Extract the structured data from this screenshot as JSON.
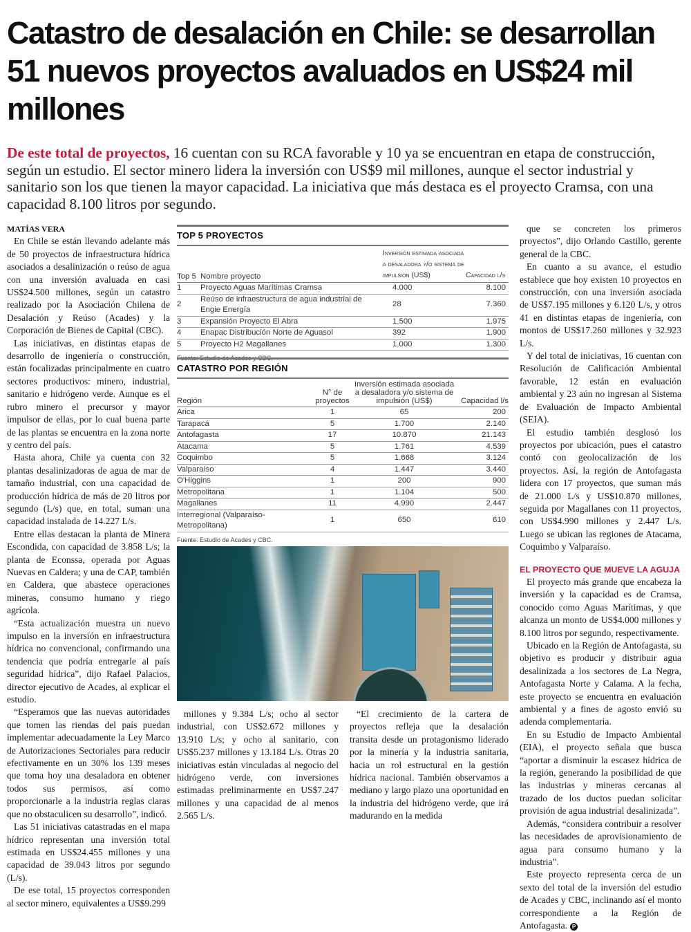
{
  "headline": "Catastro de desalación en Chile: se desarrollan 51 nuevos proyectos avaluados en US$24 mil millones",
  "lede": {
    "highlight": "De este total de proyectos,",
    "text": " 16 cuentan con su RCA favorable y 10 ya se encuentran en etapa de construcción, según un estudio. El sector minero lidera la inversión con US$9 mil millones, aunque el sector industrial y sanitario son los que tienen la mayor capacidad. La iniciativa que más destaca es el proyecto Cramsa, con una capacidad 8.100 litros por segundo."
  },
  "byline": "MATÍAS VERA",
  "col1": [
    "En Chile se están llevando adelante más de 50 proyectos de infraestructura hídrica asociados a desalinización o reúso de agua con una inversión avaluada en casi US$24.500 millones, según un catastro realizado por la Asociación Chilena de Desalación y Reúso (Acades) y la Corporación de Bienes de Capital (CBC).",
    "Las iniciativas, en distintas etapas de desarrollo de ingeniería o construcción, están focalizadas principalmente en cuatro sectores productivos: minero, industrial, sanitario e hidrógeno verde. Aunque es el rubro minero el precursor y mayor impulsor de ellas, por lo cual buena parte de las plantas se encuentra en la zona norte y centro del país.",
    "Hasta ahora, Chile ya cuenta con 32 plantas desalinizadoras de agua de mar de tamaño industrial, con una capacidad de producción hídrica de más de 20 litros por segundo (L/s) que, en total, suman una capacidad instalada de 14.227 L/s.",
    "Entre ellas destacan la planta de Minera Escondida, con capacidad de 3.858 L/s; la planta de Econssa, operada por Aguas Nuevas en Caldera; y una de CAP, también en Caldera, que abastece operaciones mineras, consumo humano y riego agrícola.",
    "“Esta actualización muestra un nuevo impulso en la inversión en infraestructura hídrica no convencional, confirmando una tendencia que podría entregarle al país seguridad hídrica”, dijo Rafael Palacios, director ejecutivo de Acades, al explicar el estudio.",
    "“Esperamos que las nuevas autoridades que tomen las riendas del país puedan implementar adecuadamente la Ley Marco de Autorizaciones Sectoriales para reducir efectivamente en un 30% los 139 meses que toma hoy una desaladora en obtener todos sus permisos, así como proporcionarle a la industria reglas claras que no obstaculicen su desarrollo”, indicó.",
    "Las 51 iniciativas catastradas en el mapa hídrico representan una inversión total estimada en US$24.455 millones y una capacidad de 39.043 litros por segundo (L/s).",
    "De ese total, 15 proyectos corresponden al sector minero, equivalentes a US$9.299"
  ],
  "col3a": [
    "millones y 9.384 L/s; ocho al sector industrial, con US$2.672 millones y 13.910 L/s; y ocho al sanitario, con US$5.237 millones y 13.184 L/s. Otras 20 iniciativas están vinculadas al negocio del hidrógeno verde, con inversiones estimadas preliminarmente en US$7.247 millones y una capacidad de al menos 2.565 L/s."
  ],
  "col3b": [
    "“El crecimiento de la cartera de proyectos refleja que la desalación transita desde un protagonismo liderado por la minería y la industria sanitaria, hacia un rol estructural en la gestión hídrica nacional. También observamos a mediano y largo plazo una oportunidad en la industria del hidrógeno verde, que irá madurando en la medida"
  ],
  "col4": [
    "que se concreten los primeros proyectos”, dijo Orlando Castillo, gerente general de la CBC.",
    "En cuanto a su avance, el estudio establece que hoy existen 10 proyectos en construcción, con una inversión asociada de US$7.195 millones y 6.120 L/s, y otros 41 en distintas etapas de ingeniería, con montos de US$17.260 millones y 32.923 L/s.",
    "Y del total de iniciativas, 16 cuentan con Resolución de Calificación Ambiental favorable, 12 están en evaluación ambiental y 23 aún no ingresan al Sistema de Evaluación de Impacto Ambiental (SEIA).",
    "El estudio también desglosó los proyectos por ubicación, pues el catastro contó con geolocalización de los proyectos. Así, la región de Antofagasta lidera con 17 proyectos, que suman más de 21.000 L/s y US$10.870 millones, seguida por Magallanes con 11 proyectos, con US$4.990 millones y 2.447 L/s. Luego se ubican las regiones de Atacama, Coquimbo y Valparaíso."
  ],
  "subhead": "EL PROYECTO QUE MUEVE LA AGUJA",
  "col4b": [
    "El proyecto más grande que encabeza la inversión y la capacidad es de Cramsa, conocido como Aguas Marítimas, y que alcanza un monto de US$4.000 millones y 8.100 litros por segundo, respectivamente.",
    "Ubicado en la Región de Antofagasta, su objetivo es producir y distribuir agua desalinizada a los sectores de La Negra, Antofagasta Norte y Calama. A la fecha, este proyecto se encuentra en evaluación ambiental y a fines de agosto envió su adenda complementaria.",
    "En su Estudio de Impacto Ambiental (EIA), el proyecto señala que busca “aportar a disminuir la escasez hídrica de la región, generando la posibilidad de que las industrias y mineras cercanas al trazado de los ductos puedan solicitar provisión de agua industrial desalinizada”.",
    "Además, “considera contribuir a resolver las necesidades de aprovisionamiento de agua para consumo humano y la industria”.",
    "Este proyecto representa cerca de un sexto del total de la inversión del estudio de Acades y CBC, inclinando así el monto correspondiente a la Región de Antofagasta."
  ],
  "end_mark": "P",
  "top5": {
    "title": "TOP 5 PROYECTOS",
    "headers": [
      "Top 5",
      "Nombre proyecto",
      "Inversión estimada asociada a desaladora y/o sistema de impulsión (US$)",
      "Capacidad l/s"
    ],
    "rows": [
      [
        "1",
        "Proyecto Aguas Marítimas Cramsa",
        "4.000",
        "8.100"
      ],
      [
        "2",
        "Reúso de infraestructura de agua industrial de Engie Energía",
        "28",
        "7.360"
      ],
      [
        "3",
        "Expansión Proyecto El Abra",
        "1.500",
        "1.975"
      ],
      [
        "4",
        "Enapac Distribución Norte de Aguasol",
        "392",
        "1.900"
      ],
      [
        "5",
        "Proyecto H2 Magallanes",
        "1.000",
        "1.300"
      ]
    ],
    "source": "Fuente: Estudio de Acades y CBC."
  },
  "regions": {
    "title": "CATASTRO POR REGIÓN",
    "headers": [
      "Región",
      "N° de proyectos",
      "Inversión estimada asociada a desaladora y/o sistema de impulsión (US$)",
      "Capacidad l/s"
    ],
    "rows": [
      [
        "Arica",
        "1",
        "65",
        "200"
      ],
      [
        "Tarapacá",
        "5",
        "1.700",
        "2.140"
      ],
      [
        "Antofagasta",
        "17",
        "10.870",
        "21.143"
      ],
      [
        "Atacama",
        "5",
        "1.761",
        "4.539"
      ],
      [
        "Coquimbo",
        "5",
        "1.668",
        "3.124"
      ],
      [
        "Valparaíso",
        "4",
        "1.447",
        "3.440"
      ],
      [
        "O'Higgins",
        "1",
        "200",
        "900"
      ],
      [
        "Metropolitana",
        "1",
        "1.104",
        "500"
      ],
      [
        "Magallanes",
        "11",
        "4.990",
        "2.447"
      ],
      [
        "Interregional (Valparaíso- Metropolitana)",
        "1",
        "650",
        "610"
      ]
    ],
    "source": "Fuente: Estudio de Acades y CBC."
  },
  "colors": {
    "accent": "#c8193c"
  }
}
